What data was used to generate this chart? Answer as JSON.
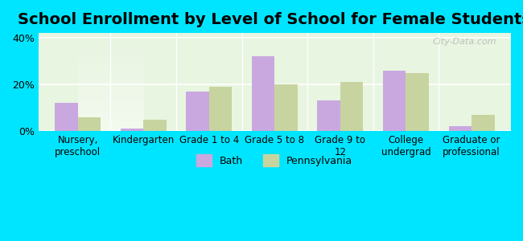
{
  "title": "School Enrollment by Level of School for Female Students",
  "categories": [
    "Nursery,\npreschool",
    "Kindergarten",
    "Grade 1 to 4",
    "Grade 5 to 8",
    "Grade 9 to\n12",
    "College\nundergrad",
    "Graduate or\nprofessional"
  ],
  "bath_values": [
    12,
    1,
    17,
    32,
    13,
    26,
    2
  ],
  "pa_values": [
    6,
    5,
    19,
    20,
    21,
    25,
    7
  ],
  "bath_color": "#c9a8e0",
  "pa_color": "#c8d4a0",
  "bg_color": "#00e5ff",
  "plot_bg_gradient_top": "#e8f5e0",
  "plot_bg_gradient_bottom": "#f5fff0",
  "ylim": [
    0,
    42
  ],
  "yticks": [
    0,
    20,
    40
  ],
  "ytick_labels": [
    "0%",
    "20%",
    "40%"
  ],
  "bar_width": 0.35,
  "title_fontsize": 14,
  "legend_labels": [
    "Bath",
    "Pennsylvania"
  ],
  "watermark": "City-Data.com"
}
